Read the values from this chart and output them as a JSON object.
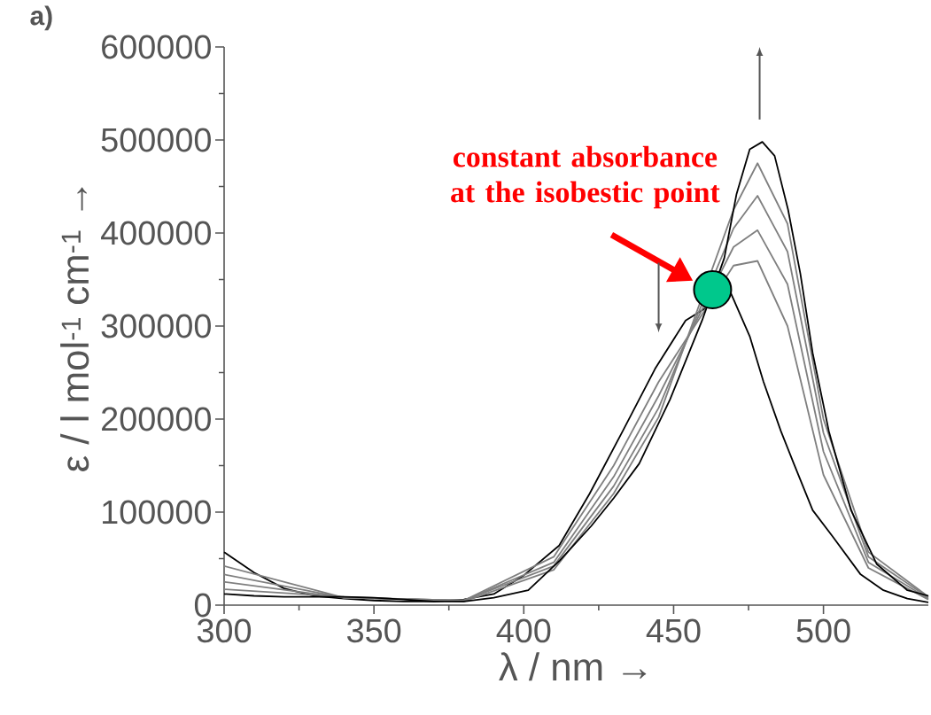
{
  "chart_data": {
    "type": "line",
    "xlabel": "λ / nm →",
    "ylabel": "ε / l mol$^{-1}$ cm$^{-1}$ →",
    "xlim": [
      300,
      535
    ],
    "ylim": [
      0,
      600000
    ],
    "xticks": [
      300,
      350,
      400,
      450,
      500
    ],
    "yticks": [
      0,
      100000,
      200000,
      300000,
      400000,
      500000,
      600000
    ],
    "marker": "none",
    "line_style": "solid",
    "annotations": [
      "a)",
      {
        "text": "constant absorbance at the isobestic point",
        "x": 463,
        "y": 339000
      }
    ],
    "series": [
      {
        "color": "#000000",
        "x": [
          300,
          310,
          320,
          330,
          340,
          350,
          360,
          370,
          380,
          390,
          400,
          411.8,
          422,
          433,
          443.8,
          454,
          463,
          469,
          475.4,
          480,
          485.8,
          490,
          496.4,
          503,
          512.4,
          520,
          528,
          535
        ],
        "values": [
          57000,
          35000,
          18000,
          10000,
          7000,
          5000,
          4000,
          4000,
          6000,
          12000,
          32000,
          64000,
          120000,
          187000,
          254000,
          306000,
          null,
          336000,
          289000,
          240000,
          187000,
          153000,
          102000,
          74000,
          33000,
          16000,
          7000,
          3000
        ]
      },
      {
        "color": "#7f7f7f",
        "x": [
          300,
          340,
          380,
          410,
          430,
          445,
          463,
          470,
          478,
          488,
          500,
          515,
          535
        ],
        "values": [
          42000,
          8000,
          5000,
          52000,
          150000,
          240000,
          null,
          365000,
          370000,
          300000,
          140000,
          40000,
          6000
        ]
      },
      {
        "color": "#7f7f7f",
        "x": [
          300,
          340,
          380,
          410,
          430,
          445,
          463,
          470,
          478,
          488,
          500,
          515,
          535
        ],
        "values": [
          33000,
          8000,
          5000,
          46000,
          138000,
          225000,
          null,
          385000,
          403000,
          345000,
          165000,
          46000,
          7000
        ]
      },
      {
        "color": "#7f7f7f",
        "x": [
          300,
          340,
          380,
          410,
          430,
          445,
          463,
          470,
          478,
          488,
          500,
          515,
          535
        ],
        "values": [
          25000,
          8000,
          5000,
          42000,
          128000,
          212000,
          null,
          405000,
          440000,
          380000,
          185000,
          52000,
          8000
        ]
      },
      {
        "color": "#7f7f7f",
        "x": [
          300,
          340,
          380,
          410,
          430,
          445,
          463,
          470,
          478,
          488,
          500,
          515,
          535
        ],
        "values": [
          17000,
          9000,
          4000,
          38000,
          120000,
          202000,
          null,
          425000,
          475000,
          410000,
          200000,
          57000,
          9000
        ]
      },
      {
        "color": "#000000",
        "x": [
          300,
          310,
          320,
          330,
          340,
          350,
          360,
          370,
          380,
          390,
          401.5,
          412,
          422.5,
          430,
          438.5,
          448.8,
          459.5,
          466.9,
          471,
          475.4,
          479.6,
          483.7,
          488.2,
          492.3,
          496.4,
          501.8,
          509.2,
          517.8,
          528,
          535
        ],
        "values": [
          12000,
          10000,
          9000,
          9000,
          9000,
          8000,
          6000,
          4000,
          4000,
          8000,
          16000,
          48000,
          85000,
          115000,
          152000,
          221000,
          306000,
          373000,
          442000,
          490000,
          498000,
          483000,
          425000,
          356000,
          271000,
          187000,
          102000,
          44000,
          16000,
          10000
        ]
      },
      {
        "type": "scatter",
        "marker": "circle",
        "color": "#00c88c",
        "x": [
          463
        ],
        "values": [
          339000
        ]
      }
    ]
  }
}
